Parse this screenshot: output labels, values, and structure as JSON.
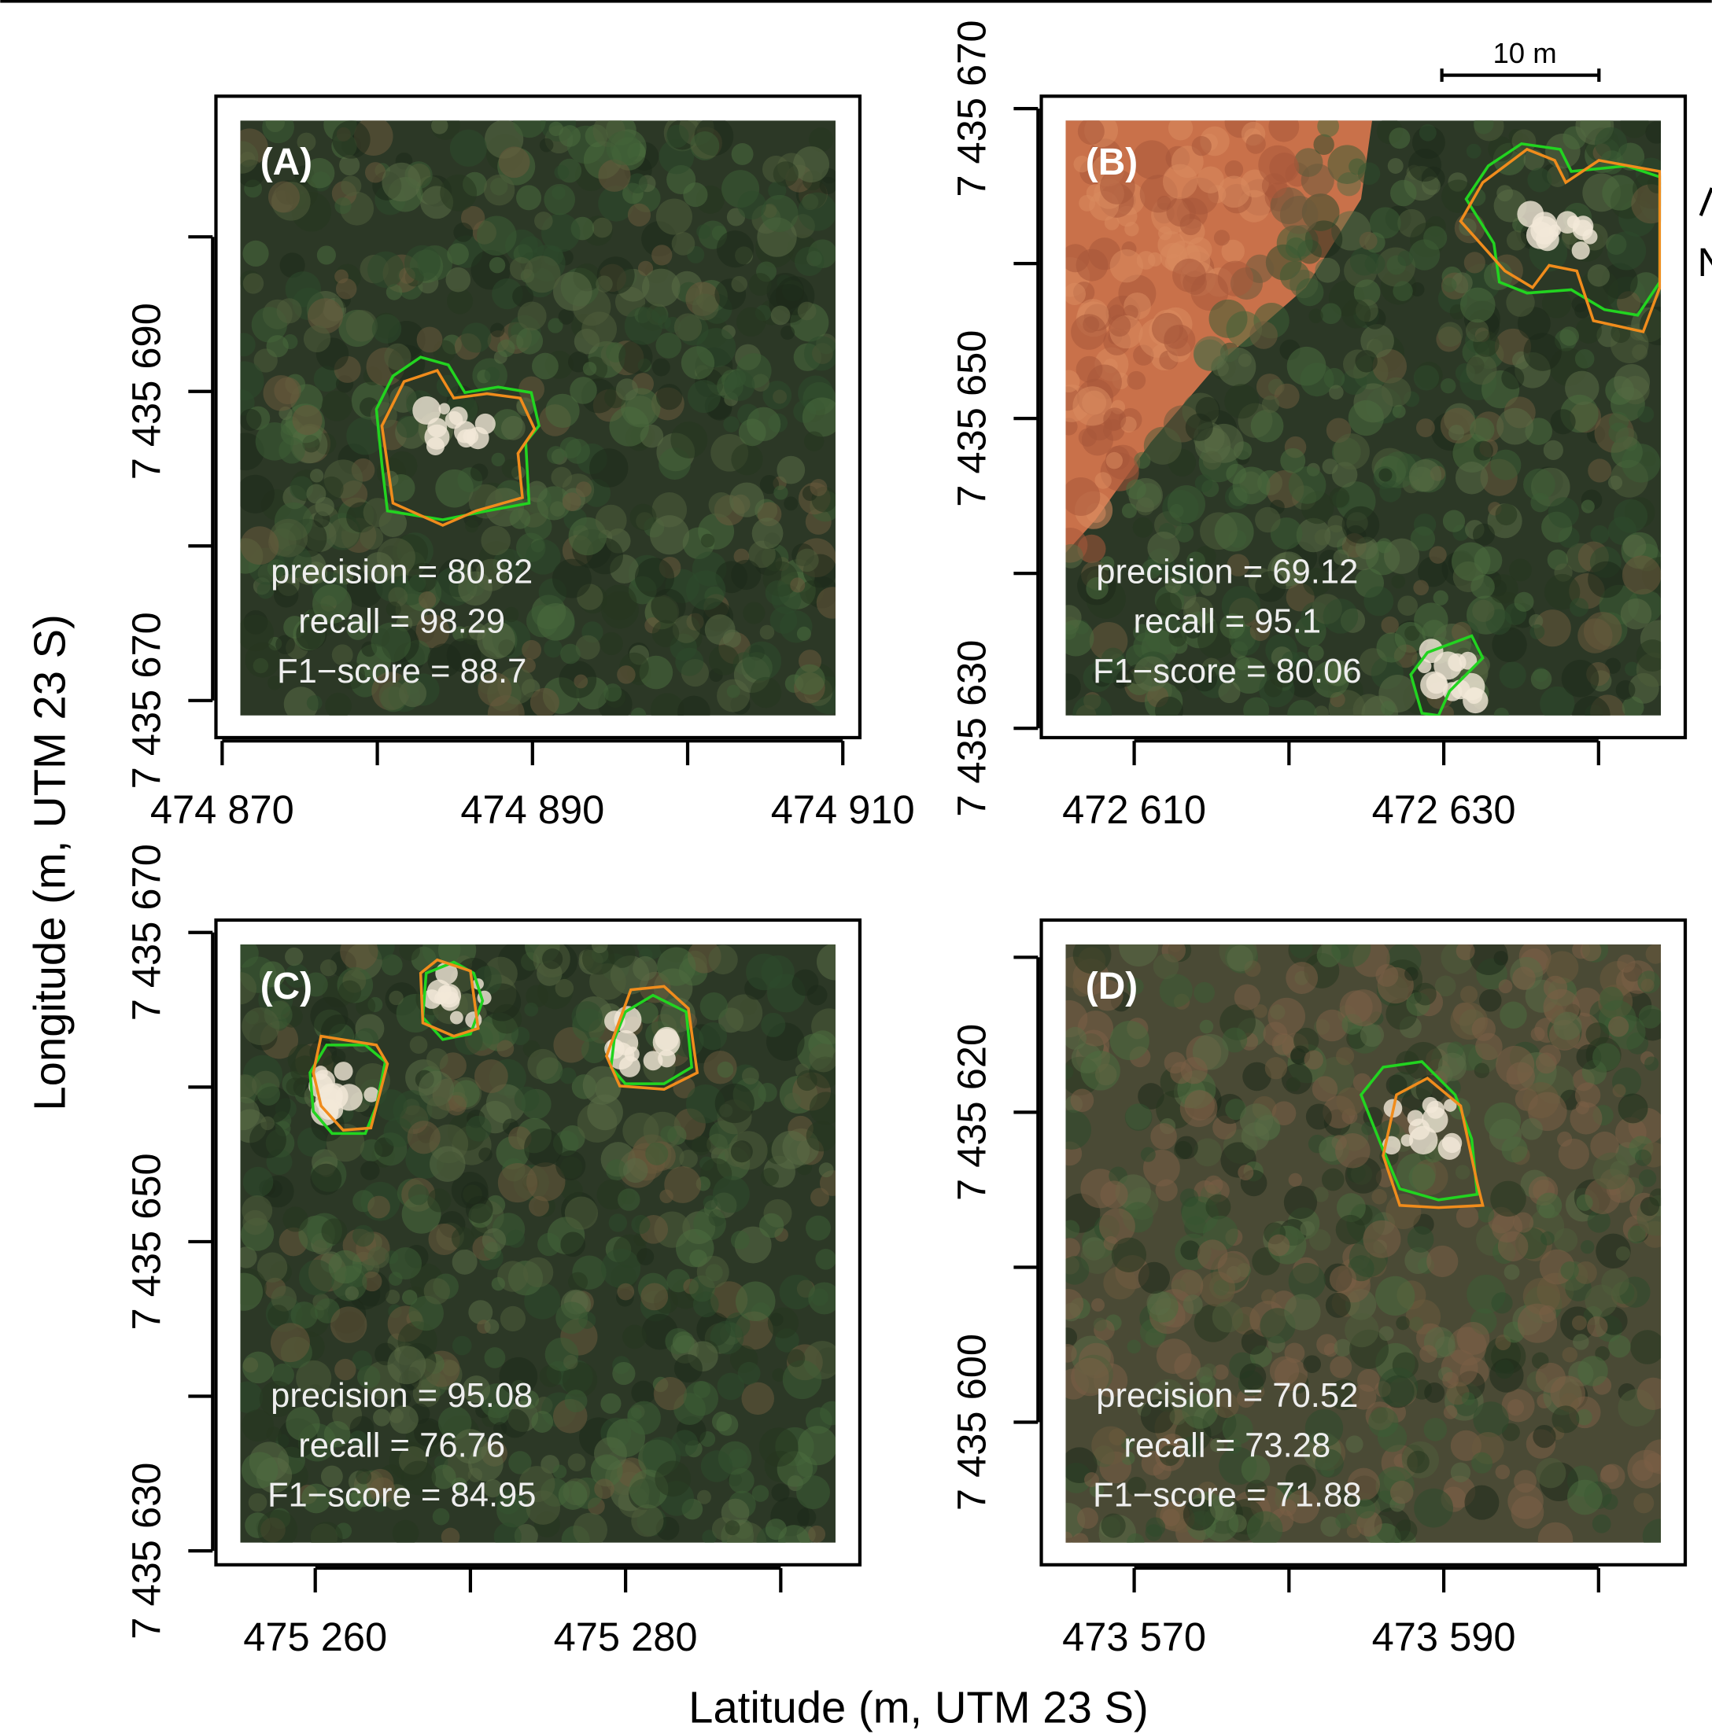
{
  "figure": {
    "xlabel": "Latitude (m, UTM 23 S)",
    "ylabel": "Longitude (m, UTM 23 S)",
    "scale_bar": "10 m",
    "north": "N"
  },
  "chart_data": [
    {
      "type": "map",
      "title": "(A)",
      "xlim": [
        474869.6,
        474911.1
      ],
      "ylim": [
        7435667.6,
        7435709.1
      ],
      "xticks": [
        {
          "value": 474870,
          "label": "474 870"
        },
        474880,
        {
          "value": 474890,
          "label": "474 890"
        },
        474900,
        {
          "value": 474910,
          "label": "474 910"
        }
      ],
      "yticks": [
        {
          "value": 7435670,
          "label": "7 435 670"
        },
        7435680,
        {
          "value": 7435690,
          "label": "7 435 690"
        },
        7435700
      ],
      "annotations": [
        "precision = 80.82",
        "recall = 98.29",
        "F1−score = 88.7"
      ]
    },
    {
      "type": "map",
      "title": "(B)",
      "xlim": [
        472604,
        472645.6
      ],
      "ylim": [
        7435629.4,
        7435670.8
      ],
      "xticks": [
        {
          "value": 472610,
          "label": "472 610"
        },
        472620,
        {
          "value": 472630,
          "label": "472 630"
        },
        472640
      ],
      "yticks": [
        {
          "value": 7435630,
          "label": "7 435 630"
        },
        7435640,
        {
          "value": 7435650,
          "label": "7 435 650"
        },
        7435660,
        {
          "value": 7435670,
          "label": "7 435 670"
        }
      ],
      "annotations": [
        "precision = 69.12",
        "recall = 95.1",
        "F1−score = 80.06"
      ]
    },
    {
      "type": "map",
      "title": "(C)",
      "xlim": [
        475253.6,
        475295.1
      ],
      "ylim": [
        7435629.1,
        7435670.8
      ],
      "xticks": [
        {
          "value": 475260,
          "label": "475 260"
        },
        475270,
        {
          "value": 475280,
          "label": "475 280"
        },
        475290
      ],
      "yticks": [
        {
          "value": 7435630,
          "label": "7 435 630"
        },
        7435640,
        {
          "value": 7435650,
          "label": "7 435 650"
        },
        7435660,
        {
          "value": 7435670,
          "label": "7 435 670"
        }
      ],
      "annotations": [
        "precision = 95.08",
        "recall = 76.76",
        "F1−score = 84.95"
      ]
    },
    {
      "type": "map",
      "title": "(D)",
      "xlim": [
        473564,
        473605.6
      ],
      "ylim": [
        7435590.8,
        7435632.4
      ],
      "xticks": [
        {
          "value": 473570,
          "label": "473 570"
        },
        473580,
        {
          "value": 473590,
          "label": "473 590"
        },
        473600
      ],
      "yticks": [
        {
          "value": 7435600,
          "label": "7 435 600"
        },
        7435610,
        {
          "value": 7435620,
          "label": "7 435 620"
        },
        7435630
      ],
      "annotations": [
        "precision = 70.52",
        "recall = 73.28",
        "F1−score = 71.88"
      ]
    }
  ]
}
